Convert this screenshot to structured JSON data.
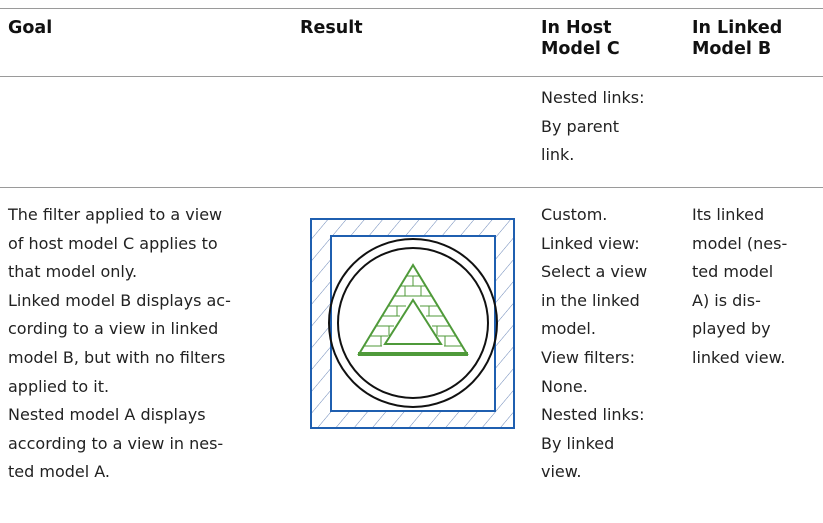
{
  "table": {
    "header": [
      [
        "Goal"
      ],
      [
        "Result"
      ],
      [
        "In Host",
        "Model C"
      ],
      [
        "In Linked",
        "Model B"
      ]
    ],
    "rows": [
      [
        [],
        [],
        [
          "Nested links:",
          "By parent",
          "link."
        ],
        []
      ],
      [
        [
          "The filter applied to a view",
          "of host model C applies to",
          "that model only.",
          "Linked model B displays ac-",
          "cording to a view in linked",
          "model B, but with no filters",
          "applied to it.",
          "Nested model A displays",
          "according to a view in nes-",
          "ted model A."
        ],
        [],
        [
          "Custom.",
          "Linked view:",
          "Select a view",
          "in the linked",
          "model.",
          "View filters:",
          "None.",
          "Nested links:",
          "By linked",
          "view."
        ],
        [
          "Its linked",
          "model (nes-",
          "ted model",
          "A) is dis-",
          "played by",
          "linked view."
        ]
      ]
    ]
  }
}
